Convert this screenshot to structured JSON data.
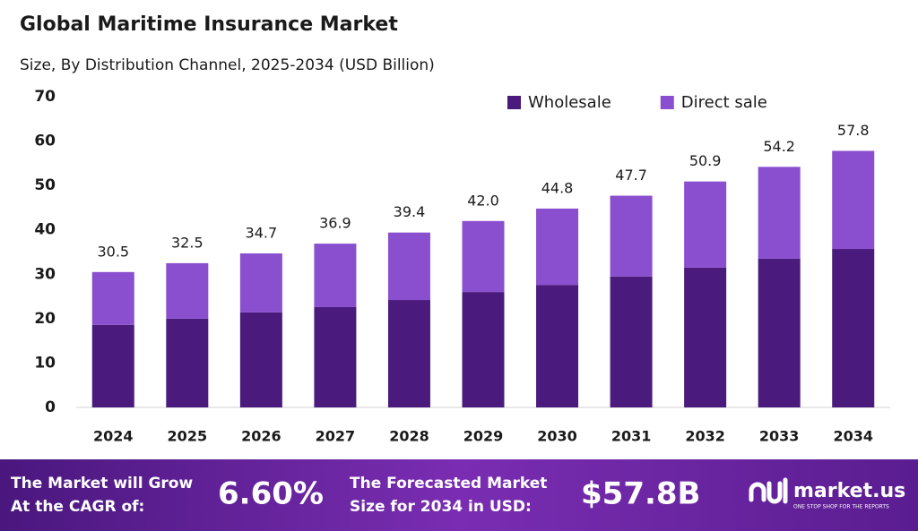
{
  "chart_data": {
    "type": "stacked-bar",
    "title": "Global Maritime Insurance Market",
    "subtitle": "Size, By Distribution Channel, 2025-2034 (USD Billion)",
    "categories": [
      "2024",
      "2025",
      "2026",
      "2027",
      "2028",
      "2029",
      "2030",
      "2031",
      "2032",
      "2033",
      "2034"
    ],
    "series": [
      {
        "name": "Wholesale",
        "color": "#4a1a7c",
        "values": [
          18.6,
          20.0,
          21.4,
          22.6,
          24.2,
          26.0,
          27.6,
          29.5,
          31.5,
          33.5,
          35.7
        ]
      },
      {
        "name": "Direct sale",
        "color": "#8a4fce",
        "values": [
          11.9,
          12.5,
          13.3,
          14.3,
          15.2,
          16.0,
          17.2,
          18.2,
          19.4,
          20.7,
          22.1
        ]
      }
    ],
    "totals": [
      30.5,
      32.5,
      34.7,
      36.9,
      39.4,
      42.0,
      44.8,
      47.7,
      50.9,
      54.2,
      57.8
    ],
    "total_labels": [
      "30.5",
      "32.5",
      "34.7",
      "36.9",
      "39.4",
      "42.0",
      "44.8",
      "47.7",
      "50.9",
      "54.2",
      "57.8"
    ],
    "ylim": [
      0,
      70
    ],
    "yticks": [
      0,
      10,
      20,
      30,
      40,
      50,
      60,
      70
    ],
    "legend": "top-right",
    "grid": false
  },
  "footer": {
    "cagr_label": [
      "The Market will Grow",
      "At the CAGR of:"
    ],
    "cagr": "6.60%",
    "forecast_label": [
      "The Forecasted Market",
      "Size for 2034 in USD:"
    ],
    "forecast": "$57.8B",
    "brand": "market.us",
    "tagline": "ONE STOP SHOP FOR THE REPORTS"
  }
}
